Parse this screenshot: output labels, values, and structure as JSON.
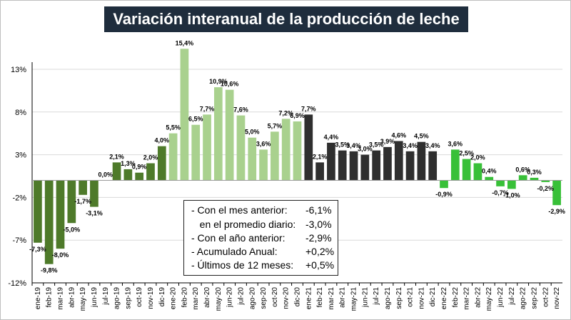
{
  "title": "Variación interanual de la producción de leche",
  "colors": {
    "background": "#ffffff",
    "title_bg": "#1f2d3d",
    "title_text": "#ffffff",
    "gridline": "#d9d9d9",
    "axis": "#000000",
    "year_2019": "#4e7a2a",
    "year_2020": "#a9d18e",
    "year_2021": "#2f2f2f",
    "year_2022": "#38c038"
  },
  "chart_data": {
    "type": "bar",
    "categories": [
      "ene-19",
      "feb-19",
      "mar-19",
      "abr-19",
      "may-19",
      "jun-19",
      "jul-19",
      "ago-19",
      "sep-19",
      "oct-19",
      "nov-19",
      "dic-19",
      "ene-20",
      "feb-20",
      "mar-20",
      "abr-20",
      "may-20",
      "jun-20",
      "jul-20",
      "ago-20",
      "sep-20",
      "oct-20",
      "nov-20",
      "dic-20",
      "ene-21",
      "feb-21",
      "mar-21",
      "abr-21",
      "may-21",
      "jun-21",
      "jul-21",
      "ago-21",
      "sep-21",
      "oct-21",
      "nov-21",
      "dic-21",
      "ene-22",
      "feb-22",
      "mar-22",
      "abr-22",
      "may-22",
      "jun-22",
      "jul-22",
      "ago-22",
      "sep-22",
      "oct-22",
      "nov-22"
    ],
    "values": [
      -7.3,
      -9.8,
      -8.0,
      -5.0,
      -1.7,
      -3.1,
      0.0,
      2.1,
      1.3,
      0.9,
      2.0,
      4.0,
      5.5,
      15.4,
      6.5,
      7.7,
      10.9,
      10.6,
      7.6,
      5.0,
      3.6,
      5.7,
      7.2,
      6.9,
      7.7,
      2.1,
      4.4,
      3.5,
      3.4,
      3.0,
      3.5,
      3.9,
      4.6,
      3.4,
      4.5,
      3.4,
      -0.9,
      3.6,
      2.5,
      2.0,
      0.4,
      -0.7,
      -1.0,
      0.6,
      0.3,
      -0.2,
      -2.9
    ],
    "data_labels": [
      "-7,3%",
      "-9,8%",
      "-8,0%",
      "-5,0%",
      "-1,7%",
      "-3,1%",
      "0,0%",
      "2,1%",
      "1,3%",
      "0,9%",
      "2,0%",
      "4,0%",
      "5,5%",
      "15,4%",
      "6,5%",
      "7,7%",
      "10,9%",
      "10,6%",
      "7,6%",
      "5,0%",
      "3,6%",
      "5,7%",
      "7,2%",
      "6,9%",
      "7,7%",
      "2,1%",
      "4,4%",
      "3,5%",
      "3,4%",
      "3,0%",
      "3,5%",
      "3,9%",
      "4,6%",
      "3,4%",
      "4,5%",
      "3,4%",
      "-0,9%",
      "3,6%",
      "2,5%",
      "2,0%",
      "0,4%",
      "-0,7%",
      "-1,0%",
      "0,6%",
      "0,3%",
      "-0,2%",
      "-2,9%"
    ],
    "year_groups": [
      "year_2019",
      "year_2019",
      "year_2019",
      "year_2019",
      "year_2019",
      "year_2019",
      "year_2019",
      "year_2019",
      "year_2019",
      "year_2019",
      "year_2019",
      "year_2019",
      "year_2020",
      "year_2020",
      "year_2020",
      "year_2020",
      "year_2020",
      "year_2020",
      "year_2020",
      "year_2020",
      "year_2020",
      "year_2020",
      "year_2020",
      "year_2020",
      "year_2021",
      "year_2021",
      "year_2021",
      "year_2021",
      "year_2021",
      "year_2021",
      "year_2021",
      "year_2021",
      "year_2021",
      "year_2021",
      "year_2021",
      "year_2021",
      "year_2022",
      "year_2022",
      "year_2022",
      "year_2022",
      "year_2022",
      "year_2022",
      "year_2022",
      "year_2022",
      "year_2022",
      "year_2022",
      "year_2022"
    ],
    "y_ticks": [
      13,
      8,
      3,
      -2,
      -7,
      -12
    ],
    "y_tick_labels": [
      "13%",
      "8%",
      "3%",
      "-2%",
      "-7%",
      "-12%"
    ],
    "ylim": [
      -12,
      13
    ],
    "grid": true,
    "xlabel": "",
    "ylabel": ""
  },
  "summary": [
    {
      "label": "- Con el mes anterior:",
      "value": "-6,1%"
    },
    {
      "label": "   en el promedio diario:",
      "value": "-3,0%"
    },
    {
      "label": "- Con el año anterior:",
      "value": "-2,9%"
    },
    {
      "label": "- Acumulado Anual:",
      "value": "+0,2%"
    },
    {
      "label": "- Últimos de 12 meses:",
      "value": "+0,5%"
    }
  ]
}
